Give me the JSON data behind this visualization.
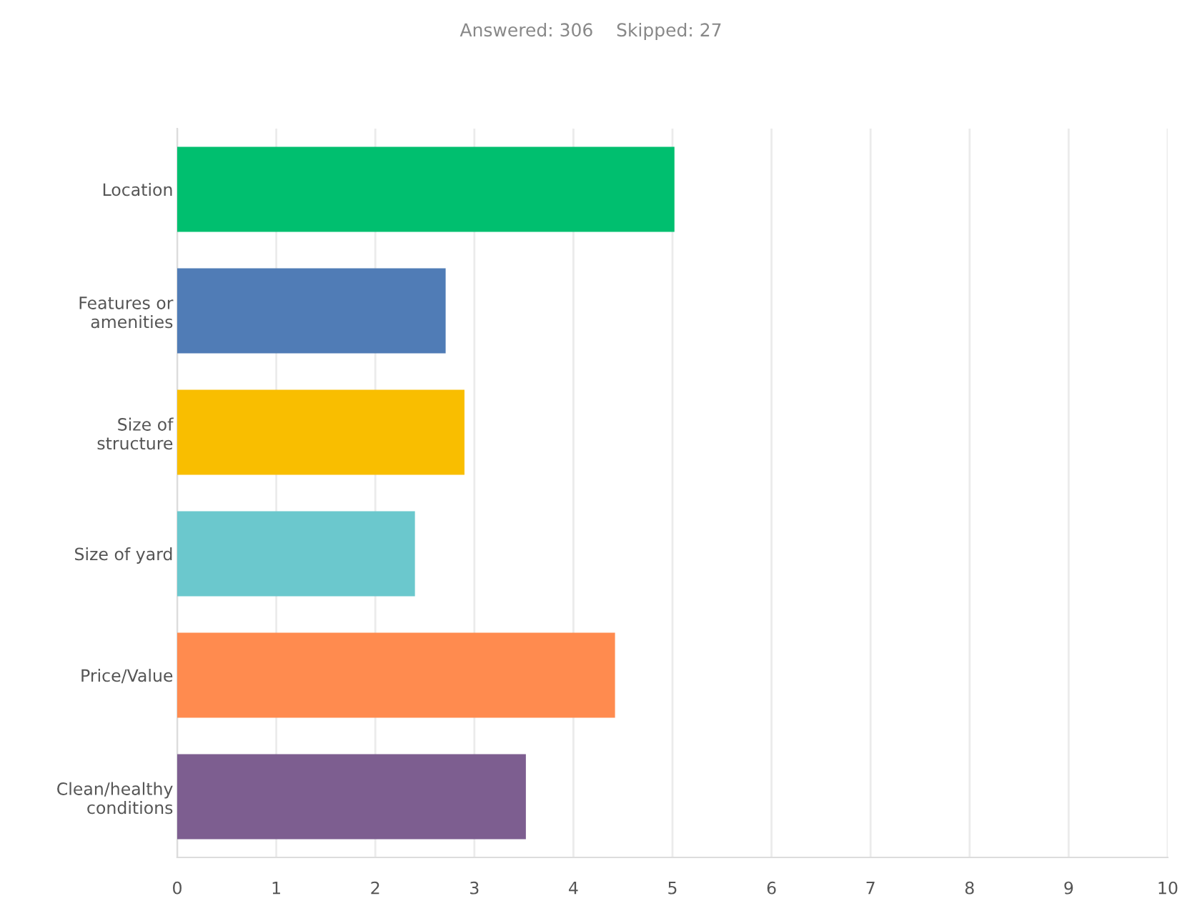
{
  "chart_data": {
    "type": "bar",
    "orientation": "horizontal",
    "title": "Answered: 306    Skipped: 27",
    "categories": [
      "Location",
      "Features or\namenities",
      "Size of\nstructure",
      "Size of yard",
      "Price/Value",
      "Clean/healthy\nconditions"
    ],
    "values": [
      5.02,
      2.71,
      2.9,
      2.4,
      4.42,
      3.52
    ],
    "colors": [
      "#00bf6f",
      "#507cb6",
      "#f9be00",
      "#6bc8cd",
      "#ff8b4f",
      "#7d5e90"
    ],
    "xlim": [
      0,
      10
    ],
    "xticks": [
      0,
      1,
      2,
      3,
      4,
      5,
      6,
      7,
      8,
      9,
      10
    ],
    "grid": "x"
  }
}
